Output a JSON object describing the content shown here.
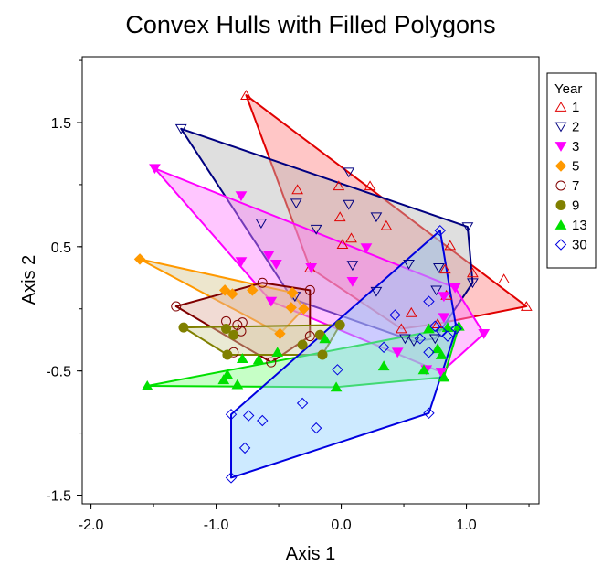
{
  "chart_data": {
    "type": "scatter",
    "title": "Convex Hulls with Filled Polygons",
    "xlabel": "Axis 1",
    "ylabel": "Axis 2",
    "xlim": [
      -2.07,
      1.58
    ],
    "ylim": [
      -1.57,
      2.03
    ],
    "xticks": [
      -2.0,
      -1.0,
      0.0,
      1.0
    ],
    "xtick_labels": [
      "-2.0",
      "-1.0",
      "0.0",
      "1.0"
    ],
    "yticks": [
      1.5,
      0.5,
      -0.5,
      -1.5
    ],
    "ytick_labels": [
      "1.5",
      "0.5",
      "-0.5",
      "-1.5"
    ],
    "grid": false,
    "legend": {
      "title": "Year",
      "placement": "right"
    },
    "series": [
      {
        "name": "1",
        "marker": "triangle-open",
        "color": "#e00000",
        "fill": "#ff8080",
        "hull": [
          [
            -0.76,
            1.72
          ],
          [
            1.48,
            0.02
          ],
          [
            0.77,
            -0.12
          ],
          [
            0.48,
            -0.16
          ],
          [
            -0.25,
            0.33
          ]
        ],
        "points": [
          [
            -0.76,
            1.72
          ],
          [
            1.48,
            0.02
          ],
          [
            -0.35,
            0.96
          ],
          [
            -0.02,
            0.99
          ],
          [
            0.23,
            0.99
          ],
          [
            -0.01,
            0.74
          ],
          [
            0.36,
            0.67
          ],
          [
            0.08,
            0.57
          ],
          [
            0.01,
            0.52
          ],
          [
            0.87,
            0.51
          ],
          [
            1.05,
            0.29
          ],
          [
            1.3,
            0.24
          ],
          [
            0.83,
            0.32
          ],
          [
            0.84,
            0.11
          ],
          [
            0.56,
            -0.03
          ],
          [
            -0.25,
            0.33
          ],
          [
            0.77,
            -0.12
          ],
          [
            0.48,
            -0.16
          ]
        ]
      },
      {
        "name": "2",
        "marker": "triangle-down-open",
        "color": "#000080",
        "fill": "#b8b8b8",
        "hull": [
          [
            -1.28,
            1.45
          ],
          [
            1.01,
            0.66
          ],
          [
            1.05,
            0.21
          ],
          [
            0.75,
            -0.24
          ],
          [
            0.58,
            -0.26
          ],
          [
            -0.39,
            0.08
          ]
        ],
        "points": [
          [
            -1.28,
            1.45
          ],
          [
            1.01,
            0.66
          ],
          [
            1.05,
            0.21
          ],
          [
            0.06,
            1.1
          ],
          [
            -0.36,
            0.85
          ],
          [
            0.06,
            0.84
          ],
          [
            0.28,
            0.74
          ],
          [
            -0.64,
            0.69
          ],
          [
            -0.2,
            0.64
          ],
          [
            0.09,
            0.35
          ],
          [
            0.54,
            0.36
          ],
          [
            0.78,
            0.33
          ],
          [
            0.76,
            0.15
          ],
          [
            0.28,
            0.14
          ],
          [
            -0.37,
            0.1
          ],
          [
            0.58,
            -0.26
          ],
          [
            0.75,
            -0.24
          ],
          [
            0.51,
            -0.24
          ]
        ]
      },
      {
        "name": "3",
        "marker": "triangle-down-filled",
        "color": "#ff00ff",
        "fill": "#ff80ff",
        "hull": [
          [
            -1.49,
            1.13
          ],
          [
            0.91,
            0.17
          ],
          [
            1.14,
            -0.2
          ],
          [
            0.8,
            -0.51
          ],
          [
            -0.56,
            0.06
          ]
        ],
        "points": [
          [
            -1.49,
            1.13
          ],
          [
            -0.8,
            0.91
          ],
          [
            0.91,
            0.17
          ],
          [
            1.14,
            -0.2
          ],
          [
            0.8,
            -0.51
          ],
          [
            -0.56,
            0.06
          ],
          [
            -0.8,
            0.38
          ],
          [
            -0.58,
            0.43
          ],
          [
            -0.52,
            0.36
          ],
          [
            -0.24,
            0.33
          ],
          [
            0.09,
            0.22
          ],
          [
            0.2,
            0.49
          ],
          [
            0.82,
            -0.07
          ],
          [
            0.82,
            0.1
          ],
          [
            0.45,
            -0.35
          ],
          [
            0.68,
            -0.49
          ]
        ]
      },
      {
        "name": "5",
        "marker": "diamond-filled",
        "color": "#ff9900",
        "fill": "#d8c890",
        "hull": [
          [
            -1.61,
            0.4
          ],
          [
            -0.39,
            0.13
          ],
          [
            -0.3,
            0.0
          ],
          [
            -0.49,
            -0.2
          ]
        ],
        "points": [
          [
            -1.61,
            0.4
          ],
          [
            -0.39,
            0.13
          ],
          [
            -0.3,
            0.0
          ],
          [
            -0.49,
            -0.2
          ],
          [
            -0.93,
            0.15
          ],
          [
            -0.87,
            0.12
          ],
          [
            -0.71,
            0.15
          ],
          [
            -0.4,
            0.01
          ]
        ]
      },
      {
        "name": "7",
        "marker": "circle-open",
        "color": "#800000",
        "fill": "#e0b0a0",
        "hull": [
          [
            -1.32,
            0.02
          ],
          [
            -0.63,
            0.21
          ],
          [
            -0.25,
            0.15
          ],
          [
            -0.25,
            -0.22
          ],
          [
            -0.56,
            -0.43
          ]
        ],
        "points": [
          [
            -1.32,
            0.02
          ],
          [
            -0.63,
            0.21
          ],
          [
            -0.25,
            0.15
          ],
          [
            -0.25,
            -0.22
          ],
          [
            -0.56,
            -0.43
          ],
          [
            -0.92,
            -0.1
          ],
          [
            -0.79,
            -0.11
          ],
          [
            -0.8,
            -0.18
          ],
          [
            -0.86,
            -0.35
          ],
          [
            -0.83,
            -0.13
          ]
        ]
      },
      {
        "name": "9",
        "marker": "circle-filled",
        "color": "#808000",
        "fill": "#d0d0a0",
        "hull": [
          [
            -1.26,
            -0.15
          ],
          [
            -0.01,
            -0.13
          ],
          [
            -0.15,
            -0.37
          ],
          [
            -0.91,
            -0.37
          ]
        ],
        "points": [
          [
            -1.26,
            -0.15
          ],
          [
            -0.01,
            -0.13
          ],
          [
            -0.15,
            -0.37
          ],
          [
            -0.91,
            -0.37
          ],
          [
            -0.92,
            -0.16
          ],
          [
            -0.86,
            -0.21
          ],
          [
            -0.17,
            -0.21
          ],
          [
            -0.31,
            -0.29
          ]
        ]
      },
      {
        "name": "13",
        "marker": "triangle-filled",
        "color": "#00e000",
        "fill": "#80ff80",
        "hull": [
          [
            -1.55,
            -0.62
          ],
          [
            0.94,
            -0.14
          ],
          [
            0.82,
            -0.55
          ],
          [
            -0.04,
            -0.63
          ]
        ],
        "points": [
          [
            -1.55,
            -0.62
          ],
          [
            0.94,
            -0.14
          ],
          [
            0.82,
            -0.55
          ],
          [
            -0.04,
            -0.63
          ],
          [
            -0.94,
            -0.57
          ],
          [
            -0.91,
            -0.53
          ],
          [
            -0.83,
            -0.61
          ],
          [
            -0.79,
            -0.4
          ],
          [
            -0.66,
            -0.41
          ],
          [
            -0.51,
            -0.35
          ],
          [
            -0.13,
            -0.24
          ],
          [
            0.34,
            -0.46
          ],
          [
            0.66,
            -0.49
          ],
          [
            0.77,
            -0.32
          ],
          [
            0.8,
            -0.37
          ],
          [
            0.7,
            -0.16
          ],
          [
            0.85,
            -0.15
          ]
        ]
      },
      {
        "name": "30",
        "marker": "diamond-open",
        "color": "#0000e0",
        "fill": "#90d0ff",
        "hull": [
          [
            -0.88,
            -0.85
          ],
          [
            0.79,
            0.63
          ],
          [
            0.92,
            -0.16
          ],
          [
            0.7,
            -0.84
          ],
          [
            -0.88,
            -1.36
          ]
        ],
        "points": [
          [
            -0.88,
            -0.85
          ],
          [
            0.79,
            0.63
          ],
          [
            0.92,
            -0.16
          ],
          [
            0.7,
            -0.84
          ],
          [
            -0.88,
            -1.36
          ],
          [
            -0.74,
            -0.86
          ],
          [
            -0.63,
            -0.9
          ],
          [
            -0.77,
            -1.12
          ],
          [
            -0.31,
            -0.76
          ],
          [
            -0.2,
            -0.96
          ],
          [
            -0.03,
            -0.49
          ],
          [
            0.34,
            -0.31
          ],
          [
            0.43,
            -0.05
          ],
          [
            0.7,
            0.06
          ],
          [
            0.63,
            -0.24
          ],
          [
            0.7,
            -0.35
          ],
          [
            0.85,
            -0.22
          ],
          [
            0.75,
            -0.14
          ],
          [
            0.8,
            -0.18
          ]
        ]
      }
    ]
  }
}
